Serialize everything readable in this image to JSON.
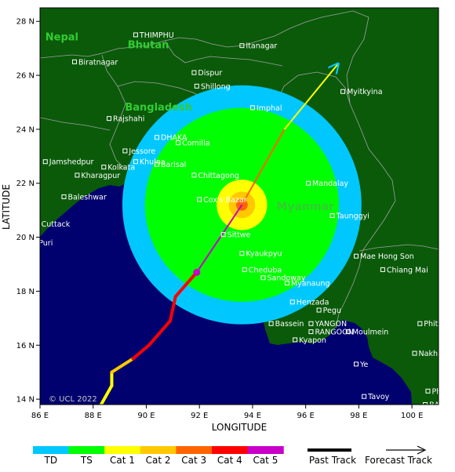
{
  "map": {
    "xlabel": "LONGITUDE",
    "ylabel": "LATITUDE",
    "copyright": "© UCL 2022",
    "x_ticks": [
      "86 E",
      "88 E",
      "90 E",
      "92 E",
      "94 E",
      "96 E",
      "98 E",
      "100 E"
    ],
    "y_ticks": [
      "28 N",
      "26 N",
      "24 N",
      "22 N",
      "20 N",
      "18 N",
      "16 N",
      "14 N"
    ],
    "lon_range": [
      86,
      101
    ],
    "lat_range": [
      13.8,
      28.5
    ],
    "colors": {
      "sea": "#00006e",
      "land": "#0a5a0a",
      "border": "#a0a0a0",
      "td": "#00c8ff",
      "ts": "#00ff00",
      "cat1": "#ffff00",
      "cat2": "#ffc800",
      "cat3": "#ff6400",
      "cat4": "#ff0000",
      "cat5": "#c800c8"
    },
    "countries": [
      {
        "name": "Nepal",
        "lon": 86.2,
        "lat": 27.3
      },
      {
        "name": "Bhutan",
        "lon": 89.3,
        "lat": 27.0
      },
      {
        "name": "Bangladesh",
        "lon": 89.2,
        "lat": 24.7
      },
      {
        "name": "Myanmar",
        "lon": 94.9,
        "lat": 21.0
      }
    ],
    "cities": [
      {
        "name": "THIMPHU",
        "lon": 89.6,
        "lat": 27.5
      },
      {
        "name": "Itanagar",
        "lon": 93.6,
        "lat": 27.1
      },
      {
        "name": "Biratnagar",
        "lon": 87.3,
        "lat": 26.5
      },
      {
        "name": "Dispur",
        "lon": 91.8,
        "lat": 26.1
      },
      {
        "name": "Shillong",
        "lon": 91.9,
        "lat": 25.6
      },
      {
        "name": "Imphal",
        "lon": 94.0,
        "lat": 24.8
      },
      {
        "name": "Myitkyina",
        "lon": 97.4,
        "lat": 25.4
      },
      {
        "name": "Rajshahi",
        "lon": 88.6,
        "lat": 24.4
      },
      {
        "name": "DHAKA",
        "lon": 90.4,
        "lat": 23.7
      },
      {
        "name": "Jessore",
        "lon": 89.2,
        "lat": 23.2
      },
      {
        "name": "Comilla",
        "lon": 91.2,
        "lat": 23.5
      },
      {
        "name": "Jamshedpur",
        "lon": 86.2,
        "lat": 22.8
      },
      {
        "name": "Khulna",
        "lon": 89.6,
        "lat": 22.8
      },
      {
        "name": "Kolkata",
        "lon": 88.4,
        "lat": 22.6
      },
      {
        "name": "Barisal",
        "lon": 90.4,
        "lat": 22.7
      },
      {
        "name": "Kharagpur",
        "lon": 87.4,
        "lat": 22.3
      },
      {
        "name": "Chittagong",
        "lon": 91.8,
        "lat": 22.3
      },
      {
        "name": "Mandalay",
        "lon": 96.1,
        "lat": 22.0
      },
      {
        "name": "Baleshwar",
        "lon": 86.9,
        "lat": 21.5
      },
      {
        "name": "Cox's Bazar",
        "lon": 92.0,
        "lat": 21.4
      },
      {
        "name": "Taunggyi",
        "lon": 97.0,
        "lat": 20.8
      },
      {
        "name": "Cuttack",
        "lon": 85.9,
        "lat": 20.5
      },
      {
        "name": "Sittwe",
        "lon": 92.9,
        "lat": 20.1
      },
      {
        "name": "Puri",
        "lon": 85.8,
        "lat": 19.8
      },
      {
        "name": "Kyaukpyu",
        "lon": 93.6,
        "lat": 19.4
      },
      {
        "name": "Mae Hong Son",
        "lon": 97.9,
        "lat": 19.3
      },
      {
        "name": "Cheduba",
        "lon": 93.7,
        "lat": 18.8
      },
      {
        "name": "Chiang Mai",
        "lon": 98.9,
        "lat": 18.8
      },
      {
        "name": "Sandoway",
        "lon": 94.4,
        "lat": 18.5
      },
      {
        "name": "Myanaung",
        "lon": 95.3,
        "lat": 18.3
      },
      {
        "name": "Henzada",
        "lon": 95.5,
        "lat": 17.6
      },
      {
        "name": "Pegu",
        "lon": 96.5,
        "lat": 17.3
      },
      {
        "name": "YANGON",
        "lon": 96.2,
        "lat": 16.8
      },
      {
        "name": "RANGOON",
        "lon": 96.2,
        "lat": 16.5
      },
      {
        "name": "Phitsanulok",
        "lon": 100.3,
        "lat": 16.8
      },
      {
        "name": "Bassein",
        "lon": 94.7,
        "lat": 16.8
      },
      {
        "name": "Moulmein",
        "lon": 97.6,
        "lat": 16.5
      },
      {
        "name": "Kyapon",
        "lon": 95.6,
        "lat": 16.2
      },
      {
        "name": "Nakhon Sawan",
        "lon": 100.1,
        "lat": 15.7
      },
      {
        "name": "Ye",
        "lon": 97.9,
        "lat": 15.3
      },
      {
        "name": "Phra Nakhon Si Ayutthaya",
        "lon": 100.6,
        "lat": 14.3
      },
      {
        "name": "Tavoy",
        "lon": 98.2,
        "lat": 14.1
      },
      {
        "name": "BANGKOK",
        "lon": 100.5,
        "lat": 13.8
      }
    ],
    "storm": {
      "center": {
        "lon": 93.6,
        "lat": 21.2
      },
      "wind_radii_deg": {
        "td": 4.5,
        "ts": 3.65,
        "cat1": 0.95,
        "cat2": 0.5,
        "cat3": 0.22
      }
    },
    "past_track": [
      {
        "lon": 88.3,
        "lat": 13.8,
        "cat": "cat1"
      },
      {
        "lon": 88.7,
        "lat": 14.5,
        "cat": "cat1"
      },
      {
        "lon": 88.7,
        "lat": 15.0,
        "cat": "cat2"
      },
      {
        "lon": 89.5,
        "lat": 15.5,
        "cat": "cat4"
      },
      {
        "lon": 90.1,
        "lat": 16.0,
        "cat": "cat4"
      },
      {
        "lon": 90.9,
        "lat": 16.9,
        "cat": "cat4"
      },
      {
        "lon": 91.1,
        "lat": 17.8,
        "cat": "cat4"
      },
      {
        "lon": 91.9,
        "lat": 18.7,
        "cat": "cat4"
      }
    ],
    "forecast_track": [
      {
        "lon": 91.9,
        "lat": 18.7,
        "cat": "cat5"
      },
      {
        "lon": 93.6,
        "lat": 21.2,
        "cat": "cat3"
      },
      {
        "lon": 95.2,
        "lat": 24.0,
        "cat": "cat1"
      },
      {
        "lon": 97.2,
        "lat": 26.4,
        "cat": "td"
      }
    ]
  },
  "legend": {
    "categories": [
      {
        "label": "TD",
        "color": "#00c8ff"
      },
      {
        "label": "TS",
        "color": "#00ff00"
      },
      {
        "label": "Cat 1",
        "color": "#ffff00"
      },
      {
        "label": "Cat 2",
        "color": "#ffc800"
      },
      {
        "label": "Cat 3",
        "color": "#ff6400"
      },
      {
        "label": "Cat 4",
        "color": "#ff0000"
      },
      {
        "label": "Cat 5",
        "color": "#c800c8"
      }
    ],
    "past_track_label": "Past Track",
    "forecast_track_label": "Forecast Track"
  }
}
